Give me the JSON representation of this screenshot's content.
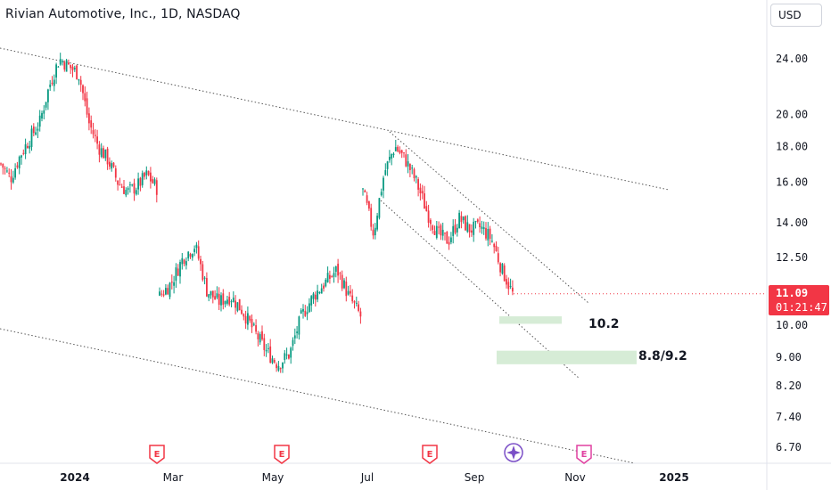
{
  "header": {
    "title": "Rivian Automotive, Inc., 1D, NASDAQ"
  },
  "currency_button": {
    "label": "USD"
  },
  "price_tag": {
    "price": "11.09",
    "countdown": "01:21:47",
    "color": "#f23645"
  },
  "colors": {
    "up": "#089981",
    "down": "#f23645",
    "zone": "#d6ecd6",
    "events": "#f23645",
    "event_future": "#e040a0",
    "trendline": "#555555"
  },
  "chart_data": {
    "type": "candlestick",
    "title": "Rivian Automotive, Inc., 1D, NASDAQ",
    "y_scale": "log",
    "y_ticks": [
      "24.00",
      "20.00",
      "18.00",
      "16.00",
      "14.00",
      "12.50",
      "10.00",
      "9.00",
      "8.20",
      "7.40",
      "6.70"
    ],
    "x_ticks": [
      "2024",
      "Mar",
      "May",
      "Jul",
      "Sep",
      "Nov",
      "2025"
    ],
    "last_price": 11.09,
    "grid": false,
    "series": [
      {
        "segment": "2023-11 to 2024-02",
        "approx_close": [
          17.0,
          16.2,
          17.5,
          18.5,
          19.5,
          22.0,
          24.0,
          23.4,
          22.8,
          19.5,
          18.0,
          17.2,
          16.0,
          15.5,
          15.8,
          16.4,
          15.7
        ]
      },
      {
        "segment": "2024-02 to 2024-06",
        "approx_close": [
          11.0,
          11.5,
          12.5,
          13.0,
          11.2,
          10.8,
          11.0,
          10.5,
          9.8,
          9.2,
          8.8,
          9.1,
          10.3,
          11.0,
          11.5,
          12.0,
          11.0,
          10.3
        ]
      },
      {
        "segment": "2024-06 to 2024-09",
        "approx_close": [
          15.5,
          13.5,
          16.5,
          18.0,
          17.2,
          16.0,
          14.5,
          13.5,
          13.2,
          14.2,
          13.7,
          13.8,
          13.3,
          12.0,
          11.09
        ]
      }
    ],
    "annotations": [
      {
        "text": "10.2",
        "price_low": 10.05,
        "price_high": 10.3
      },
      {
        "text": "8.8/9.2",
        "price_low": 8.8,
        "price_high": 9.2
      }
    ],
    "events": [
      {
        "label": "E",
        "x_label": "2024"
      },
      {
        "label": "E",
        "x_label": "May"
      },
      {
        "label": "E",
        "x_label": "Aug"
      },
      {
        "label": "E",
        "x_label": "Nov"
      }
    ]
  }
}
